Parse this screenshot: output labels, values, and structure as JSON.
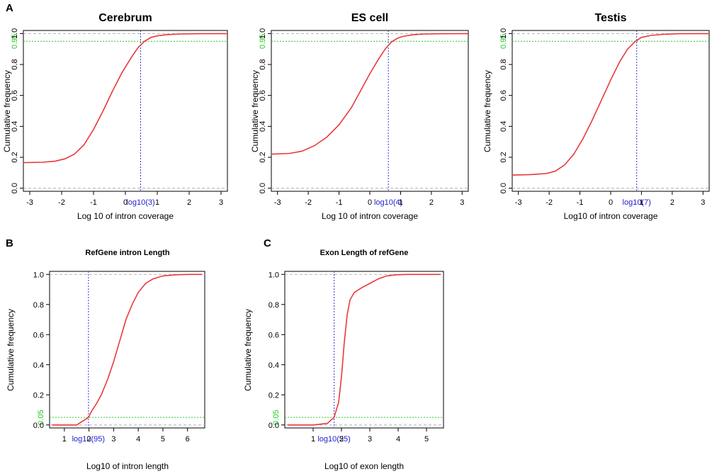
{
  "panel_labels": [
    "A",
    "B",
    "C"
  ],
  "chart_data": [
    {
      "type": "line",
      "title": "Cerebrum",
      "xlabel": "Log 10 of intron coverage",
      "ylabel": "Cumulative frequency",
      "xlim": [
        -3.2,
        3.2
      ],
      "ylim": [
        -0.02,
        1.02
      ],
      "xticks": [
        "-3",
        "-2",
        "-1",
        "0",
        "1",
        "2",
        "3"
      ],
      "xtick_values": [
        -3,
        -2,
        -1,
        0,
        1,
        2,
        3
      ],
      "yticks": [
        "0.0",
        "0.2",
        "0.4",
        "0.6",
        "0.8",
        "1.0"
      ],
      "ytick_values": [
        0,
        0.2,
        0.4,
        0.6,
        0.8,
        1.0
      ],
      "series": [
        {
          "name": "cumulative",
          "color": "#e8393b",
          "x": [
            -3.2,
            -2.6,
            -2.2,
            -1.9,
            -1.6,
            -1.3,
            -1.0,
            -0.7,
            -0.4,
            -0.1,
            0.2,
            0.4,
            0.6,
            0.8,
            1.0,
            1.3,
            1.7,
            2.2,
            3.2
          ],
          "y": [
            0.165,
            0.168,
            0.175,
            0.19,
            0.22,
            0.28,
            0.38,
            0.5,
            0.63,
            0.75,
            0.85,
            0.91,
            0.95,
            0.975,
            0.985,
            0.993,
            0.997,
            0.999,
            1.0
          ]
        }
      ],
      "hlines_gray": [
        0.0,
        1.0
      ],
      "hline_green": {
        "y": 0.95,
        "label": "0.95"
      },
      "vline_blue": {
        "x": 0.4771,
        "label": "log10(3)"
      }
    },
    {
      "type": "line",
      "title": "ES cell",
      "xlabel": "Log 10 of intron coverage",
      "ylabel": "Cumulative frequency",
      "xlim": [
        -3.2,
        3.2
      ],
      "ylim": [
        -0.02,
        1.02
      ],
      "xticks": [
        "-3",
        "-2",
        "-1",
        "0",
        "1",
        "2",
        "3"
      ],
      "xtick_values": [
        -3,
        -2,
        -1,
        0,
        1,
        2,
        3
      ],
      "yticks": [
        "0.0",
        "0.2",
        "0.4",
        "0.6",
        "0.8",
        "1.0"
      ],
      "ytick_values": [
        0,
        0.2,
        0.4,
        0.6,
        0.8,
        1.0
      ],
      "series": [
        {
          "name": "cumulative",
          "color": "#e8393b",
          "x": [
            -3.2,
            -2.6,
            -2.2,
            -1.8,
            -1.4,
            -1.0,
            -0.6,
            -0.3,
            0.0,
            0.3,
            0.5,
            0.7,
            0.9,
            1.1,
            1.4,
            1.8,
            2.3,
            3.2
          ],
          "y": [
            0.22,
            0.225,
            0.24,
            0.275,
            0.33,
            0.41,
            0.52,
            0.63,
            0.74,
            0.84,
            0.9,
            0.945,
            0.97,
            0.983,
            0.992,
            0.997,
            0.999,
            1.0
          ]
        }
      ],
      "hlines_gray": [
        0.0,
        1.0
      ],
      "hline_green": {
        "y": 0.95,
        "label": "0.95"
      },
      "vline_blue": {
        "x": 0.602,
        "label": "log10(4)"
      }
    },
    {
      "type": "line",
      "title": "Testis",
      "xlabel": "Log10 of intron coverage",
      "ylabel": "Cumulative frequency",
      "xlim": [
        -3.2,
        3.2
      ],
      "ylim": [
        -0.02,
        1.02
      ],
      "xticks": [
        "-3",
        "-2",
        "-1",
        "0",
        "1",
        "2",
        "3"
      ],
      "xtick_values": [
        -3,
        -2,
        -1,
        0,
        1,
        2,
        3
      ],
      "yticks": [
        "0.0",
        "0.2",
        "0.4",
        "0.6",
        "0.8",
        "1.0"
      ],
      "ytick_values": [
        0,
        0.2,
        0.4,
        0.6,
        0.8,
        1.0
      ],
      "series": [
        {
          "name": "cumulative",
          "color": "#e8393b",
          "x": [
            -3.2,
            -2.6,
            -2.1,
            -1.8,
            -1.5,
            -1.2,
            -0.9,
            -0.6,
            -0.3,
            0.0,
            0.3,
            0.55,
            0.8,
            1.0,
            1.3,
            1.7,
            2.2,
            3.2
          ],
          "y": [
            0.085,
            0.088,
            0.095,
            0.11,
            0.15,
            0.22,
            0.32,
            0.44,
            0.57,
            0.7,
            0.82,
            0.9,
            0.95,
            0.975,
            0.988,
            0.995,
            0.999,
            1.0
          ]
        }
      ],
      "hlines_gray": [
        0.0,
        1.0
      ],
      "hline_green": {
        "y": 0.95,
        "label": "0.95"
      },
      "vline_blue": {
        "x": 0.845,
        "label": "log10(7)"
      }
    },
    {
      "type": "line",
      "title": "RefGene intron Length",
      "xlabel": "Log10 of intron length",
      "ylabel": "Cumulative frequency",
      "xlim": [
        0.4,
        6.7
      ],
      "ylim": [
        -0.02,
        1.02
      ],
      "xticks": [
        "1",
        "2",
        "3",
        "4",
        "5",
        "6"
      ],
      "xtick_values": [
        1,
        2,
        3,
        4,
        5,
        6
      ],
      "yticks": [
        "0.0",
        "0.2",
        "0.4",
        "0.6",
        "0.8",
        "1.0"
      ],
      "ytick_values": [
        0,
        0.2,
        0.4,
        0.6,
        0.8,
        1.0
      ],
      "series": [
        {
          "name": "cumulative",
          "color": "#e8393b",
          "x": [
            0.5,
            1.0,
            1.5,
            1.978,
            2.1,
            2.3,
            2.5,
            2.75,
            3.0,
            3.25,
            3.5,
            3.75,
            4.0,
            4.3,
            4.6,
            5.0,
            5.5,
            6.0,
            6.6
          ],
          "y": [
            0.0,
            0.0,
            0.0,
            0.05,
            0.09,
            0.14,
            0.2,
            0.3,
            0.42,
            0.56,
            0.7,
            0.8,
            0.88,
            0.94,
            0.97,
            0.99,
            0.997,
            1.0,
            1.0
          ]
        }
      ],
      "hlines_gray": [
        0.0,
        1.0
      ],
      "hline_green": {
        "y": 0.05,
        "label": "0.05"
      },
      "vline_blue": {
        "x": 1.978,
        "label": "log10(95)"
      }
    },
    {
      "type": "line",
      "title": "Exon Length of refGene",
      "xlabel": "Log10 of exon length",
      "ylabel": "Cumulative frequency",
      "xlim": [
        0.0,
        5.6
      ],
      "ylim": [
        -0.02,
        1.02
      ],
      "xticks": [
        "1",
        "2",
        "3",
        "4",
        "5"
      ],
      "xtick_values": [
        1,
        2,
        3,
        4,
        5
      ],
      "yticks": [
        "0.0",
        "0.2",
        "0.4",
        "0.6",
        "0.8",
        "1.0"
      ],
      "ytick_values": [
        0,
        0.2,
        0.4,
        0.6,
        0.8,
        1.0
      ],
      "series": [
        {
          "name": "cumulative",
          "color": "#e8393b",
          "x": [
            0.1,
            1.0,
            1.5,
            1.74,
            1.9,
            2.0,
            2.1,
            2.2,
            2.3,
            2.45,
            2.7,
            3.0,
            3.3,
            3.6,
            3.9,
            4.3,
            4.8,
            5.5
          ],
          "y": [
            0.0,
            0.0,
            0.01,
            0.05,
            0.15,
            0.32,
            0.55,
            0.73,
            0.83,
            0.88,
            0.91,
            0.94,
            0.97,
            0.99,
            0.997,
            1.0,
            1.0,
            1.0
          ]
        }
      ],
      "hlines_gray": [
        0.0,
        1.0
      ],
      "hline_green": {
        "y": 0.05,
        "label": "0.05"
      },
      "vline_blue": {
        "x": 1.74,
        "label": "log10(55)"
      }
    }
  ]
}
